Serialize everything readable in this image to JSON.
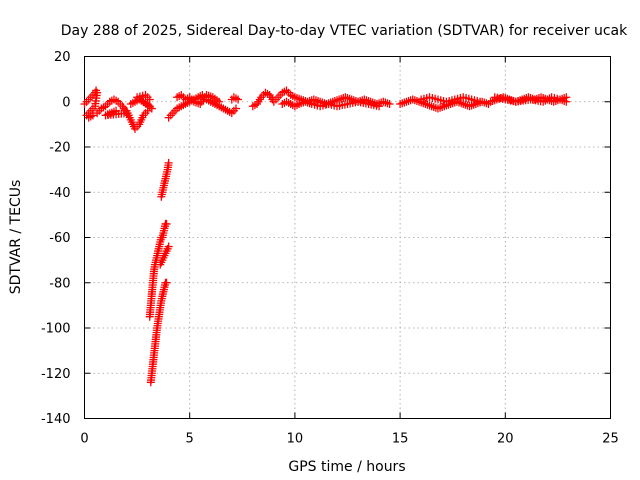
{
  "chart_data": {
    "type": "scatter",
    "title": "Day 288 of 2025, Sidereal Day-to-day VTEC variation (SDTVAR) for receiver ucak",
    "xlabel": "GPS time / hours",
    "ylabel": "SDTVAR / TECUs",
    "xlim": [
      0,
      25
    ],
    "ylim": [
      -140,
      20
    ],
    "xticks": [
      0,
      5,
      10,
      15,
      20,
      25
    ],
    "yticks": [
      20,
      0,
      -20,
      -40,
      -60,
      -80,
      -100,
      -120,
      -140
    ],
    "grid": true,
    "marker": "+",
    "series": [
      {
        "name": "SDTVAR",
        "color": "#ff0000",
        "segments": [
          {
            "x": [
              0.0,
              0.1,
              0.2,
              0.3,
              0.4,
              0.5,
              0.55,
              0.6,
              0.5,
              0.4,
              0.3,
              0.2,
              0.1,
              0.2,
              0.4
            ],
            "y": [
              -1,
              0,
              1,
              2,
              3,
              4,
              5,
              4,
              -2,
              -3,
              -4,
              -5,
              -6,
              -7,
              -6
            ]
          },
          {
            "x": [
              0.6,
              0.8,
              1.0,
              1.2,
              1.4,
              1.6,
              1.8,
              2.0,
              1.0,
              1.5
            ],
            "y": [
              -5,
              -3,
              -2,
              0,
              1,
              0,
              -2,
              -5,
              -6,
              -4
            ]
          },
          {
            "x": [
              2.0,
              2.1,
              2.2,
              2.3,
              2.4,
              2.5,
              2.6,
              2.7,
              2.8,
              2.9,
              3.0
            ],
            "y": [
              -4,
              -6,
              -8,
              -10,
              -12,
              -11,
              -10,
              -8,
              -6,
              -5,
              -4
            ]
          },
          {
            "x": [
              2.2,
              2.4,
              2.6,
              2.8,
              3.0,
              3.1,
              3.2,
              2.5,
              2.9,
              3.1
            ],
            "y": [
              -1,
              0,
              1,
              0,
              -1,
              -2,
              -3,
              2,
              3,
              1
            ]
          },
          {
            "x": [
              3.65,
              3.7,
              3.75,
              3.8,
              3.85,
              3.9,
              3.95,
              4.0
            ],
            "y": [
              -42,
              -40,
              -38,
              -36,
              -34,
              -32,
              -30,
              -27
            ]
          },
          {
            "x": [
              3.1,
              3.15,
              3.2,
              3.25,
              3.3,
              3.35,
              3.4,
              3.45,
              3.5,
              3.55,
              3.6,
              3.65,
              3.7,
              3.75,
              3.8,
              3.85,
              3.9
            ],
            "y": [
              -95,
              -90,
              -85,
              -80,
              -75,
              -72,
              -70,
              -68,
              -66,
              -64,
              -62,
              -60,
              -60,
              -58,
              -56,
              -54,
              -54
            ]
          },
          {
            "x": [
              3.6,
              3.7,
              3.8,
              3.9,
              4.0
            ],
            "y": [
              -72,
              -70,
              -68,
              -66,
              -64
            ]
          },
          {
            "x": [
              3.15,
              3.2,
              3.25,
              3.3,
              3.35,
              3.4,
              3.45,
              3.5,
              3.55,
              3.6,
              3.65,
              3.7,
              3.75,
              3.8,
              3.85,
              3.9
            ],
            "y": [
              -124,
              -120,
              -116,
              -112,
              -108,
              -104,
              -100,
              -97,
              -94,
              -91,
              -88,
              -86,
              -84,
              -82,
              -80,
              -80
            ]
          },
          {
            "x": [
              4.0,
              4.2,
              4.4,
              4.6,
              4.8,
              5.0,
              5.2,
              5.4,
              5.6,
              5.8,
              6.0,
              6.2,
              6.4,
              6.6,
              6.8,
              7.0,
              7.2
            ],
            "y": [
              -7,
              -5,
              -3,
              -2,
              -1,
              0,
              1,
              2,
              3,
              1,
              0,
              -1,
              -2,
              -3,
              -4,
              -5,
              -3
            ]
          },
          {
            "x": [
              4.4,
              4.6,
              4.8,
              5.0,
              5.2,
              5.5,
              5.8,
              6.1,
              6.4
            ],
            "y": [
              2,
              3,
              1,
              2,
              0,
              -1,
              3,
              2,
              0
            ]
          },
          {
            "x": [
              7.0,
              7.1,
              7.3
            ],
            "y": [
              1,
              2,
              1
            ]
          },
          {
            "x": [
              8.0,
              8.2,
              8.4,
              8.6,
              8.8,
              9.0,
              9.2,
              9.4,
              9.6,
              9.8,
              10.0,
              10.3,
              10.6,
              10.9,
              11.2,
              11.5,
              11.8,
              12.1,
              12.4,
              12.7,
              13.0,
              13.3,
              13.6,
              13.9,
              14.2,
              14.5
            ],
            "y": [
              -2,
              -1,
              2,
              4,
              3,
              0,
              2,
              4,
              5,
              3,
              2,
              1,
              0,
              1,
              0,
              -1,
              0,
              1,
              2,
              1,
              0,
              1,
              0,
              -1,
              0,
              -1
            ]
          },
          {
            "x": [
              9.4,
              9.6,
              9.8,
              10.0,
              10.2,
              10.5,
              10.8,
              11.2,
              11.6,
              12.0,
              12.5,
              13.0,
              13.5,
              14.0
            ],
            "y": [
              -1,
              0,
              -1,
              -2,
              -1,
              0,
              -1,
              -2,
              -1,
              -2,
              -1,
              0,
              -1,
              -2
            ]
          },
          {
            "x": [
              15.0,
              15.3,
              15.6,
              15.9,
              16.2,
              16.5,
              16.8,
              17.1,
              17.4,
              17.7,
              18.0,
              18.3,
              18.6,
              18.9,
              19.2
            ],
            "y": [
              -1,
              0,
              1,
              0,
              -1,
              -2,
              -3,
              -2,
              -1,
              0,
              -1,
              -2,
              -1,
              0,
              -1
            ]
          },
          {
            "x": [
              16.0,
              16.4,
              16.8,
              17.2,
              17.6,
              18.0,
              18.4,
              18.8
            ],
            "y": [
              1,
              2,
              1,
              0,
              1,
              2,
              1,
              0
            ]
          },
          {
            "x": [
              19.3,
              19.6,
              19.9,
              20.2,
              20.5,
              20.8,
              21.1,
              21.4,
              21.7,
              22.0,
              22.3,
              22.6,
              22.9
            ],
            "y": [
              0,
              1,
              2,
              1,
              0,
              1,
              2,
              1,
              2,
              1,
              0,
              1,
              2
            ]
          },
          {
            "x": [
              19.5,
              20.0,
              20.5,
              21.2,
              21.8,
              22.2,
              22.6,
              22.9
            ],
            "y": [
              2,
              1,
              0,
              1,
              0,
              2,
              1,
              0
            ]
          }
        ]
      }
    ]
  }
}
